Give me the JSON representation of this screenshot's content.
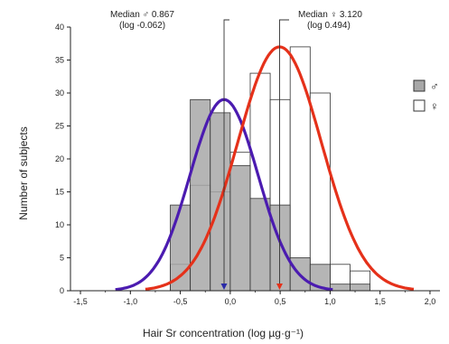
{
  "colors": {
    "male_fill": "#a8a8a8",
    "female_fill": "#ffffff",
    "bar_stroke": "#333333",
    "male_curve": "#4b1bb0",
    "female_curve": "#e5311a",
    "male_marker": "#2a2aa8",
    "female_marker": "#e5311a"
  },
  "chart_data": {
    "type": "bar",
    "xlabel": "Hair Sr concentration (log µg·g⁻¹)",
    "ylabel": "Number of subjects",
    "xlim": [
      -1.6,
      2.1
    ],
    "ylim": [
      0,
      40
    ],
    "x_ticks": [
      -1.5,
      -1.0,
      -0.5,
      0.0,
      0.5,
      1.0,
      1.5,
      2.0
    ],
    "x_tick_labels": [
      "-1,5",
      "-1,0",
      "-0,5",
      "0,0",
      "0,5",
      "1,0",
      "1,5",
      "2,0"
    ],
    "y_ticks": [
      0,
      5,
      10,
      15,
      20,
      25,
      30,
      35,
      40
    ],
    "y_tick_labels": [
      "0",
      "5",
      "10",
      "15",
      "20",
      "25",
      "30",
      "35",
      "40"
    ],
    "bin_width": 0.2,
    "bin_starts": [
      -0.6,
      -0.4,
      -0.2,
      0.0,
      0.2,
      0.4,
      0.6,
      0.8,
      1.0,
      1.2
    ],
    "series": [
      {
        "name": "♂",
        "style": "filled",
        "values": [
          13,
          29,
          27,
          19,
          14,
          13,
          5,
          4,
          1,
          1
        ]
      },
      {
        "name": "♀",
        "style": "outline",
        "values": [
          4,
          16,
          15,
          21,
          33,
          29,
          37,
          30,
          4,
          3
        ]
      }
    ],
    "fit_curves": [
      {
        "series": "♂",
        "mean": -0.062,
        "sd": 0.34,
        "peak": 29.0
      },
      {
        "series": "♀",
        "mean": 0.494,
        "sd": 0.42,
        "peak": 37.0
      }
    ],
    "annotations": [
      {
        "series": "♂",
        "line1": "Median ♂ 0.867",
        "line2": "(log -0.062)",
        "x": -0.062
      },
      {
        "series": "♀",
        "line1": "Median ♀ 3.120",
        "line2": "(log 0.494)",
        "x": 0.494
      }
    ],
    "legend": {
      "placement": "right",
      "entries": [
        {
          "label": "♂",
          "style": "filled"
        },
        {
          "label": "♀",
          "style": "outline"
        }
      ]
    }
  }
}
